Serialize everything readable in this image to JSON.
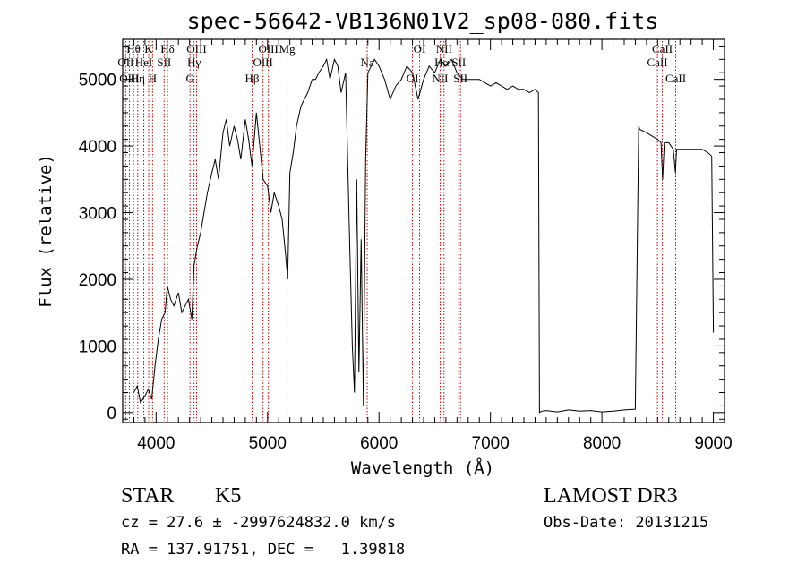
{
  "chart_data": {
    "type": "line",
    "title": "spec-56642-VB136N01V2_sp08-080.fits",
    "xlabel": "Wavelength (Å)",
    "ylabel": "Flux (relative)",
    "xlim": [
      3700,
      9100
    ],
    "ylim": [
      -150,
      5600
    ],
    "xticks": [
      "4000",
      "5000",
      "6000",
      "7000",
      "8000",
      "9000"
    ],
    "yticks": [
      "0",
      "1000",
      "2000",
      "3000",
      "4000",
      "5000"
    ],
    "grid": false,
    "legend": "none",
    "series": [
      {
        "x": [
          3800,
          3830,
          3860,
          3900,
          3930,
          3960,
          3990,
          4020,
          4050,
          4080,
          4100,
          4130,
          4160,
          4200,
          4230,
          4260,
          4290,
          4320,
          4340,
          4370,
          4400,
          4430,
          4460,
          4500,
          4530,
          4560,
          4600,
          4630,
          4660,
          4700,
          4730,
          4760,
          4800,
          4830,
          4860,
          4900,
          4930,
          4960,
          5000,
          5030,
          5060,
          5100,
          5130,
          5160,
          5180,
          5200,
          5230,
          5260,
          5300,
          5330,
          5360,
          5400,
          5430,
          5460,
          5500,
          5530,
          5560,
          5600,
          5630,
          5660,
          5700,
          5730,
          5760,
          5780,
          5800,
          5820,
          5840,
          5860,
          5880,
          5900,
          5930,
          5960,
          6000,
          6050,
          6100,
          6150,
          6200,
          6250,
          6300,
          6350,
          6400,
          6450,
          6500,
          6550,
          6600,
          6650,
          6700,
          6750,
          6800,
          6850,
          6900,
          6950,
          7000,
          7050,
          7100,
          7150,
          7200,
          7250,
          7300,
          7350,
          7400,
          7430,
          7440,
          7460,
          7500,
          7600,
          7700,
          7800,
          7900,
          8000,
          8100,
          8200,
          8300,
          8330,
          8340,
          8400,
          8450,
          8500,
          8530,
          8545,
          8560,
          8600,
          8640,
          8660,
          8670,
          8700,
          8750,
          8800,
          8850,
          8900,
          8950,
          8985,
          9000
        ],
        "y": [
          300,
          400,
          150,
          250,
          350,
          200,
          700,
          1100,
          1400,
          1500,
          1900,
          1700,
          1600,
          1800,
          1500,
          1600,
          1700,
          1400,
          2200,
          2500,
          2700,
          3000,
          3300,
          3600,
          3800,
          3500,
          4200,
          4400,
          4000,
          4300,
          4100,
          3800,
          4400,
          4100,
          3700,
          4500,
          4000,
          3500,
          3400,
          3000,
          3300,
          3100,
          2900,
          2400,
          2000,
          3600,
          3900,
          4300,
          4600,
          4700,
          4800,
          5000,
          5000,
          5100,
          5200,
          5300,
          5000,
          5300,
          5200,
          4800,
          5100,
          3000,
          1000,
          300,
          3500,
          600,
          2600,
          100,
          3800,
          5100,
          5200,
          5300,
          5200,
          5000,
          4700,
          4900,
          5000,
          5200,
          5100,
          4700,
          5000,
          5200,
          5100,
          5300,
          5200,
          5300,
          5100,
          5000,
          5000,
          5000,
          5000,
          4950,
          4900,
          4950,
          4900,
          4850,
          4900,
          4850,
          4850,
          4800,
          4850,
          4800,
          0,
          20,
          30,
          10,
          40,
          20,
          30,
          10,
          20,
          40,
          50,
          4300,
          4250,
          4200,
          4150,
          4100,
          4050,
          3500,
          4050,
          4050,
          3950,
          3600,
          3950,
          3950,
          3950,
          3950,
          3950,
          3950,
          3900,
          3850,
          1200
        ]
      }
    ],
    "line_markers": [
      {
        "label": "Hθ",
        "x": 3797
      },
      {
        "label": "OII",
        "x": 3727
      },
      {
        "label": "OIII",
        "x": 3760
      },
      {
        "label": "K",
        "x": 3933
      },
      {
        "label": "HeI",
        "x": 3889
      },
      {
        "label": "Hη",
        "x": 3835
      },
      {
        "label": "Hδ",
        "x": 4102
      },
      {
        "label": "SII",
        "x": 4072
      },
      {
        "label": "H",
        "x": 3968
      },
      {
        "label": "OIII",
        "x": 4363
      },
      {
        "label": "Hγ",
        "x": 4340
      },
      {
        "label": "G",
        "x": 4304
      },
      {
        "label": "OIII",
        "x": 5007
      },
      {
        "label": "OIII",
        "x": 4959
      },
      {
        "label": "Hβ",
        "x": 4861
      },
      {
        "label": "Mg",
        "x": 5175
      },
      {
        "label": "Na",
        "x": 5894
      },
      {
        "label": "OI",
        "x": 6300
      },
      {
        "label": "OI",
        "x": 6364
      },
      {
        "label": "Hα",
        "x": 6563
      },
      {
        "label": "NII",
        "x": 6548
      },
      {
        "label": "NII",
        "x": 6583
      },
      {
        "label": "SII",
        "x": 6716
      },
      {
        "label": "SII",
        "x": 6731
      },
      {
        "label": "CaII",
        "x": 8542
      },
      {
        "label": "CaII",
        "x": 8498
      },
      {
        "label": "CaII",
        "x": 8662
      }
    ]
  },
  "info": {
    "type": "STAR",
    "subclass": "K5",
    "survey": "LAMOST DR3",
    "cz": "cz = 27.6 ± -2997624832.0 km/s",
    "obs_date": "Obs-Date: 20131215",
    "radec": "RA = 137.91751, DEC =   1.39818"
  }
}
